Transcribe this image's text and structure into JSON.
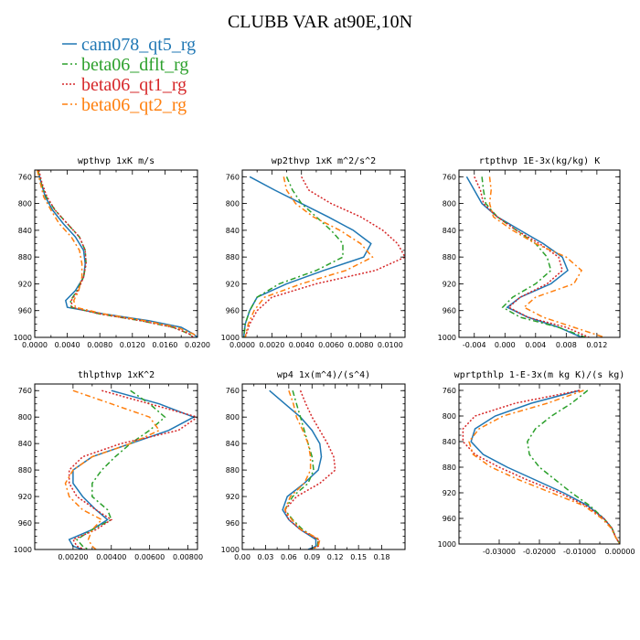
{
  "figure": {
    "title": "CLUBB VAR at90E,10N",
    "legend": [
      {
        "name": "cam078_qt5_rg",
        "color": "#1f77b4",
        "dash": "solid"
      },
      {
        "name": "beta06_dflt_rg",
        "color": "#2ca02c",
        "dash": "dashdot"
      },
      {
        "name": "beta06_qt1_rg",
        "color": "#d62728",
        "dash": "dotted"
      },
      {
        "name": "beta06_qt2_rg",
        "color": "#ff7f0e",
        "dash": "dashdot"
      }
    ]
  },
  "chart_data": [
    {
      "type": "line",
      "title": "wpthvp  1xK m/s",
      "xlim": [
        0,
        0.02
      ],
      "ylim": [
        750,
        1000
      ],
      "y_inverted": true,
      "xticks": [
        0,
        0.004,
        0.008,
        0.012,
        0.016,
        0.02
      ],
      "xtick_labels": [
        "0.0000",
        "0.0040",
        "0.0080",
        "0.0120",
        "0.0160",
        "0.0200"
      ],
      "yticks": [
        760,
        800,
        840,
        880,
        920,
        960,
        1000
      ],
      "ytick_labels": [
        "760",
        "800",
        "840",
        "880",
        "920",
        "960",
        "1000"
      ],
      "y": [
        750,
        770,
        790,
        810,
        830,
        850,
        870,
        890,
        910,
        930,
        945,
        955,
        965,
        975,
        985,
        995,
        1000
      ],
      "series": [
        {
          "name": "cam078_qt5_rg",
          "x": [
            0.0004,
            0.0008,
            0.0013,
            0.0022,
            0.0035,
            0.005,
            0.006,
            0.0062,
            0.006,
            0.005,
            0.0038,
            0.004,
            0.0085,
            0.014,
            0.018,
            0.0195,
            0.02
          ]
        },
        {
          "name": "beta06_dflt_rg",
          "x": [
            0.0004,
            0.0008,
            0.0014,
            0.0025,
            0.004,
            0.0055,
            0.0062,
            0.0063,
            0.006,
            0.0052,
            0.0044,
            0.0045,
            0.008,
            0.013,
            0.017,
            0.019,
            0.0195
          ]
        },
        {
          "name": "beta06_qt1_rg",
          "x": [
            0.0005,
            0.0009,
            0.0015,
            0.0025,
            0.004,
            0.0055,
            0.0062,
            0.0063,
            0.006,
            0.0053,
            0.0045,
            0.0046,
            0.008,
            0.013,
            0.017,
            0.019,
            0.0195
          ]
        },
        {
          "name": "beta06_qt2_rg",
          "x": [
            0.0003,
            0.0007,
            0.0011,
            0.002,
            0.003,
            0.0045,
            0.0055,
            0.0058,
            0.0058,
            0.0054,
            0.0048,
            0.005,
            0.0085,
            0.0135,
            0.0175,
            0.0195,
            0.02
          ]
        }
      ]
    },
    {
      "type": "line",
      "title": "wp2thvp  1xK m^2/s^2",
      "xlim": [
        0,
        0.011
      ],
      "ylim": [
        750,
        1000
      ],
      "y_inverted": true,
      "xticks": [
        0,
        0.002,
        0.004,
        0.006,
        0.008,
        0.01
      ],
      "xtick_labels": [
        "0.0000",
        "0.0020",
        "0.0040",
        "0.0060",
        "0.0080",
        "0.0100"
      ],
      "yticks": [
        760,
        800,
        840,
        880,
        920,
        960,
        1000
      ],
      "ytick_labels": [
        "760",
        "800",
        "840",
        "880",
        "920",
        "960",
        "1000"
      ],
      "y": [
        760,
        780,
        800,
        820,
        840,
        860,
        880,
        900,
        920,
        940,
        960,
        980,
        1000
      ],
      "series": [
        {
          "name": "cam078_qt5_rg",
          "x": [
            0.0005,
            0.0022,
            0.004,
            0.0058,
            0.0075,
            0.0087,
            0.0082,
            0.0055,
            0.003,
            0.001,
            0.0005,
            0.0002,
            0.0001
          ]
        },
        {
          "name": "beta06_dflt_rg",
          "x": [
            0.003,
            0.0034,
            0.004,
            0.005,
            0.006,
            0.0068,
            0.0068,
            0.005,
            0.0025,
            0.001,
            0.0005,
            0.0002,
            0.0001
          ]
        },
        {
          "name": "beta06_qt1_rg",
          "x": [
            0.004,
            0.0045,
            0.006,
            0.008,
            0.0095,
            0.0105,
            0.011,
            0.009,
            0.005,
            0.002,
            0.001,
            0.0005,
            0.0002
          ]
        },
        {
          "name": "beta06_qt2_rg",
          "x": [
            0.0028,
            0.003,
            0.0036,
            0.0048,
            0.0066,
            0.008,
            0.0088,
            0.007,
            0.004,
            0.0015,
            0.0008,
            0.0004,
            0.0002
          ]
        }
      ]
    },
    {
      "type": "line",
      "title": "rtpthvp  1E-3x(kg/kg) K",
      "xlim": [
        -0.006,
        0.015
      ],
      "ylim": [
        750,
        1000
      ],
      "y_inverted": true,
      "xticks": [
        -0.004,
        0,
        0.004,
        0.008,
        0.012
      ],
      "xtick_labels": [
        "-0.004",
        "0.000",
        "0.004",
        "0.008",
        "0.012"
      ],
      "yticks": [
        760,
        800,
        840,
        880,
        920,
        960,
        1000
      ],
      "ytick_labels": [
        "760",
        "800",
        "840",
        "880",
        "920",
        "960",
        "1000"
      ],
      "y": [
        760,
        780,
        800,
        820,
        840,
        860,
        880,
        900,
        920,
        940,
        955,
        970,
        985,
        1000
      ],
      "series": [
        {
          "name": "cam078_qt5_rg",
          "x": [
            -0.005,
            -0.004,
            -0.003,
            -0.001,
            0.002,
            0.005,
            0.0075,
            0.0082,
            0.006,
            0.002,
            0.0003,
            0.003,
            0.007,
            0.01
          ]
        },
        {
          "name": "beta06_dflt_rg",
          "x": [
            -0.003,
            -0.0028,
            -0.0025,
            -0.001,
            0.0015,
            0.004,
            0.0055,
            0.006,
            0.004,
            0.001,
            -0.0003,
            0.002,
            0.007,
            0.0105
          ]
        },
        {
          "name": "beta06_qt1_rg",
          "x": [
            -0.004,
            -0.0032,
            -0.0028,
            -0.001,
            0.0015,
            0.0045,
            0.007,
            0.0075,
            0.0055,
            0.002,
            0.0005,
            0.003,
            0.008,
            0.011
          ]
        },
        {
          "name": "beta06_qt2_rg",
          "x": [
            -0.002,
            -0.0018,
            -0.002,
            -0.0015,
            0.001,
            0.004,
            0.008,
            0.01,
            0.009,
            0.004,
            0.0025,
            0.005,
            0.009,
            0.013
          ]
        }
      ]
    },
    {
      "type": "line",
      "title": "thlpthvp  1xK^2",
      "xlim": [
        0,
        0.0085
      ],
      "ylim": [
        750,
        1000
      ],
      "y_inverted": true,
      "xticks": [
        0.002,
        0.004,
        0.006,
        0.008
      ],
      "xtick_labels": [
        "0.00200",
        "0.00400",
        "0.00600",
        "0.00800"
      ],
      "yticks": [
        760,
        800,
        840,
        880,
        920,
        960,
        1000
      ],
      "ytick_labels": [
        "760",
        "800",
        "840",
        "880",
        "920",
        "960",
        "1000"
      ],
      "y": [
        760,
        780,
        800,
        820,
        840,
        860,
        880,
        900,
        920,
        940,
        955,
        970,
        985,
        995,
        1000
      ],
      "series": [
        {
          "name": "cam078_qt5_rg",
          "x": [
            0.004,
            0.0065,
            0.0083,
            0.007,
            0.005,
            0.003,
            0.002,
            0.002,
            0.0025,
            0.0032,
            0.0038,
            0.003,
            0.0018,
            0.002,
            0.0025
          ]
        },
        {
          "name": "beta06_dflt_rg",
          "x": [
            0.005,
            0.006,
            0.0068,
            0.006,
            0.005,
            0.0042,
            0.0035,
            0.003,
            0.003,
            0.0038,
            0.004,
            0.003,
            0.0022,
            0.0025,
            0.0028
          ]
        },
        {
          "name": "beta06_qt1_rg",
          "x": [
            0.0035,
            0.006,
            0.0085,
            0.0075,
            0.0045,
            0.0025,
            0.0018,
            0.0018,
            0.0022,
            0.0032,
            0.004,
            0.0032,
            0.002,
            0.0022,
            0.0026
          ]
        },
        {
          "name": "beta06_qt2_rg",
          "x": [
            0.002,
            0.004,
            0.006,
            0.0065,
            0.005,
            0.003,
            0.002,
            0.0016,
            0.0018,
            0.0025,
            0.0035,
            0.003,
            0.0028,
            0.003,
            0.0032
          ]
        }
      ]
    },
    {
      "type": "line",
      "title": "wp4  1x(m^4)/(s^4)",
      "xlim": [
        0,
        0.21
      ],
      "ylim": [
        750,
        1000
      ],
      "y_inverted": true,
      "xticks": [
        0,
        0.03,
        0.06,
        0.09,
        0.12,
        0.15,
        0.18
      ],
      "xtick_labels": [
        "0.00",
        "0.03",
        "0.06",
        "0.09",
        "0.12",
        "0.15",
        "0.18"
      ],
      "yticks": [
        760,
        800,
        840,
        880,
        920,
        960,
        1000
      ],
      "ytick_labels": [
        "760",
        "800",
        "840",
        "880",
        "920",
        "960",
        "1000"
      ],
      "y": [
        760,
        780,
        800,
        820,
        840,
        860,
        880,
        900,
        920,
        940,
        955,
        970,
        985,
        995,
        1000
      ],
      "series": [
        {
          "name": "cam078_qt5_rg",
          "x": [
            0.035,
            0.055,
            0.075,
            0.09,
            0.1,
            0.102,
            0.098,
            0.08,
            0.058,
            0.052,
            0.06,
            0.075,
            0.095,
            0.095,
            0.085
          ]
        },
        {
          "name": "beta06_dflt_rg",
          "x": [
            0.065,
            0.07,
            0.075,
            0.08,
            0.085,
            0.09,
            0.092,
            0.085,
            0.065,
            0.055,
            0.065,
            0.078,
            0.098,
            0.097,
            0.088
          ]
        },
        {
          "name": "beta06_qt1_rg",
          "x": [
            0.075,
            0.082,
            0.09,
            0.1,
            0.11,
            0.118,
            0.12,
            0.1,
            0.07,
            0.055,
            0.06,
            0.075,
            0.098,
            0.098,
            0.088
          ]
        },
        {
          "name": "beta06_qt2_rg",
          "x": [
            0.06,
            0.066,
            0.07,
            0.078,
            0.085,
            0.088,
            0.088,
            0.08,
            0.062,
            0.055,
            0.064,
            0.076,
            0.1,
            0.098,
            0.09
          ]
        }
      ]
    },
    {
      "type": "line",
      "title": "wprtpthlp  1-E-3x(m kg K)/(s kg)",
      "xlim": [
        -0.04,
        0
      ],
      "ylim": [
        750,
        1000
      ],
      "y_inverted": true,
      "xticks": [
        -0.03,
        -0.02,
        -0.01,
        0
      ],
      "xtick_labels": [
        "-0.03000",
        "-0.02000",
        "-0.01000",
        "0.00000"
      ],
      "yticks": [
        760,
        800,
        840,
        880,
        920,
        960,
        1000
      ],
      "ytick_labels": [
        "760",
        "800",
        "840",
        "880",
        "920",
        "960",
        "1000"
      ],
      "y": [
        760,
        780,
        800,
        820,
        840,
        860,
        880,
        900,
        920,
        940,
        960,
        975,
        990,
        1000
      ],
      "series": [
        {
          "name": "cam078_qt5_rg",
          "x": [
            -0.01,
            -0.022,
            -0.031,
            -0.036,
            -0.037,
            -0.034,
            -0.028,
            -0.021,
            -0.014,
            -0.008,
            -0.004,
            -0.002,
            -0.001,
            0
          ]
        },
        {
          "name": "beta06_dflt_rg",
          "x": [
            -0.008,
            -0.012,
            -0.017,
            -0.021,
            -0.023,
            -0.0225,
            -0.02,
            -0.016,
            -0.012,
            -0.0075,
            -0.004,
            -0.002,
            -0.001,
            0
          ]
        },
        {
          "name": "beta06_qt1_rg",
          "x": [
            -0.01,
            -0.026,
            -0.036,
            -0.039,
            -0.039,
            -0.036,
            -0.03,
            -0.023,
            -0.015,
            -0.0085,
            -0.004,
            -0.002,
            -0.001,
            0
          ]
        },
        {
          "name": "beta06_qt2_rg",
          "x": [
            -0.009,
            -0.018,
            -0.029,
            -0.035,
            -0.0375,
            -0.0365,
            -0.032,
            -0.025,
            -0.017,
            -0.009,
            -0.0045,
            -0.0022,
            -0.001,
            0
          ]
        }
      ]
    }
  ]
}
